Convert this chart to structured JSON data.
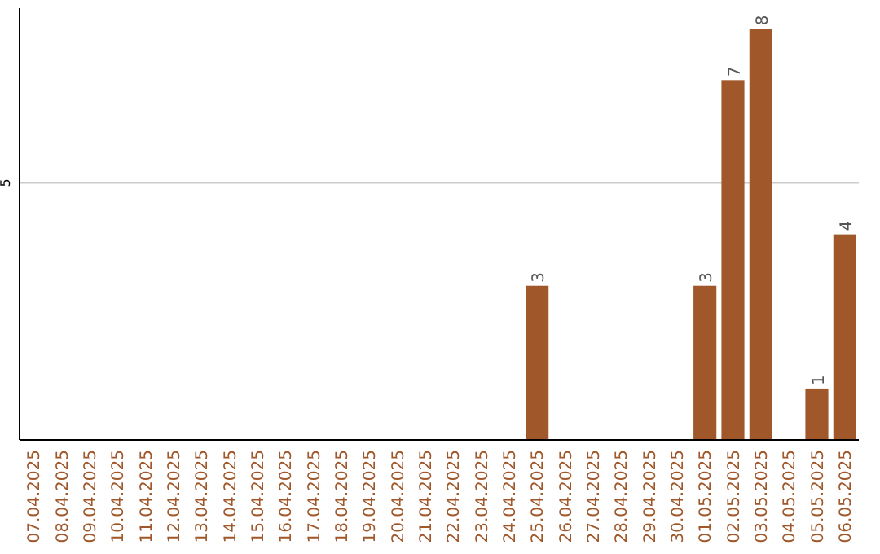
{
  "chart_data": {
    "type": "bar",
    "categories": [
      "07.04.2025",
      "08.04.2025",
      "09.04.2025",
      "10.04.2025",
      "11.04.2025",
      "12.04.2025",
      "13.04.2025",
      "14.04.2025",
      "15.04.2025",
      "16.04.2025",
      "17.04.2025",
      "18.04.2025",
      "19.04.2025",
      "20.04.2025",
      "21.04.2025",
      "22.04.2025",
      "23.04.2025",
      "24.04.2025",
      "25.04.2025",
      "26.04.2025",
      "27.04.2025",
      "28.04.2025",
      "29.04.2025",
      "30.04.2025",
      "01.05.2025",
      "02.05.2025",
      "03.05.2025",
      "04.05.2025",
      "05.05.2025",
      "06.05.2025"
    ],
    "values": [
      null,
      null,
      null,
      null,
      null,
      null,
      null,
      null,
      null,
      null,
      null,
      null,
      null,
      null,
      null,
      null,
      null,
      null,
      3,
      null,
      null,
      null,
      null,
      null,
      3,
      7,
      8,
      null,
      1,
      4
    ],
    "value_labels": [
      null,
      null,
      null,
      null,
      null,
      null,
      null,
      null,
      null,
      null,
      null,
      null,
      null,
      null,
      null,
      null,
      null,
      null,
      "3",
      null,
      null,
      null,
      null,
      null,
      "3",
      "7",
      "8",
      null,
      "1",
      "4"
    ],
    "color": "#a0572a",
    "ylim": [
      0,
      8.4
    ],
    "yticks": [
      5
    ],
    "grid": "y"
  }
}
